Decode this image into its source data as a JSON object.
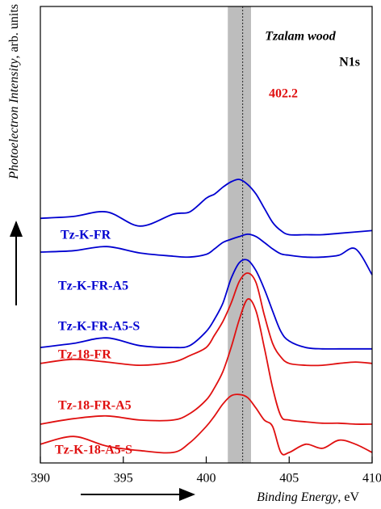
{
  "chart_data": {
    "type": "line",
    "annotations": {
      "sample": "Tzalam wood",
      "region": "N1s",
      "peak": "402.2"
    },
    "x_label": {
      "emphasis": "Binding Energy",
      "rest": ", eV"
    },
    "y_label": {
      "emphasis": "Photoelectron Intensity",
      "rest": ", arb. units"
    },
    "highlight_band": [
      401.3,
      402.7
    ],
    "reference_line": 402.2,
    "xlim": [
      390,
      410
    ],
    "xticks": [
      390,
      395,
      400,
      405,
      410
    ],
    "ylim": [
      0,
      100
    ],
    "x": [
      390,
      392,
      394,
      396,
      398,
      399,
      400,
      400.5,
      401,
      401.5,
      402,
      402.5,
      403,
      403.5,
      404,
      404.5,
      405,
      406,
      407,
      408,
      409,
      410
    ],
    "series": [
      {
        "name": "Tz-K-FR",
        "color": "#0000d0",
        "values": [
          53.6,
          54.0,
          55.0,
          51.9,
          54.5,
          55.0,
          58.0,
          58.9,
          60.4,
          61.6,
          62.1,
          61.0,
          58.9,
          55.8,
          52.7,
          50.9,
          50.0,
          50.0,
          50.0,
          50.3,
          50.6,
          50.9
        ]
      },
      {
        "name": "Tz-K-FR-A5",
        "color": "#0000d0",
        "values": [
          46.2,
          46.5,
          47.4,
          46.0,
          45.3,
          45.1,
          45.7,
          46.9,
          48.3,
          49.0,
          49.6,
          50.1,
          49.6,
          48.3,
          46.9,
          45.8,
          45.5,
          45.1,
          45.1,
          45.5,
          46.9,
          41.2
        ]
      },
      {
        "name": "Tz-K-FR-A5-S",
        "color": "#0000d0",
        "values": [
          25.3,
          26.2,
          27.4,
          25.7,
          25.3,
          25.7,
          28.8,
          31.5,
          35.0,
          40.4,
          43.9,
          44.4,
          42.1,
          38.1,
          33.3,
          28.8,
          26.7,
          25.3,
          25.0,
          25.0,
          25.0,
          25.0
        ]
      },
      {
        "name": "Tz-18-FR",
        "color": "#e01010",
        "values": [
          21.8,
          22.7,
          22.1,
          21.4,
          22.1,
          23.5,
          25.3,
          28.0,
          31.0,
          35.0,
          39.8,
          41.6,
          39.5,
          32.4,
          26.2,
          23.2,
          21.8,
          21.4,
          21.4,
          21.8,
          22.1,
          21.8
        ]
      },
      {
        "name": "Tz-18-FR-A5",
        "color": "#e01010",
        "values": [
          8.5,
          9.7,
          10.3,
          9.4,
          9.4,
          10.8,
          13.8,
          16.5,
          20.0,
          25.3,
          31.5,
          35.9,
          33.3,
          25.3,
          16.5,
          10.3,
          9.4,
          9.0,
          8.7,
          8.7,
          8.5,
          8.5
        ]
      },
      {
        "name": "Tz-K-18-A5-S",
        "color": "#e01010",
        "values": [
          4.1,
          5.8,
          3.7,
          2.7,
          2.3,
          4.4,
          8.0,
          10.3,
          12.9,
          14.7,
          15.0,
          14.3,
          12.0,
          9.4,
          8.0,
          2.3,
          2.3,
          4.1,
          3.2,
          5.0,
          4.1,
          2.3
        ]
      }
    ]
  }
}
